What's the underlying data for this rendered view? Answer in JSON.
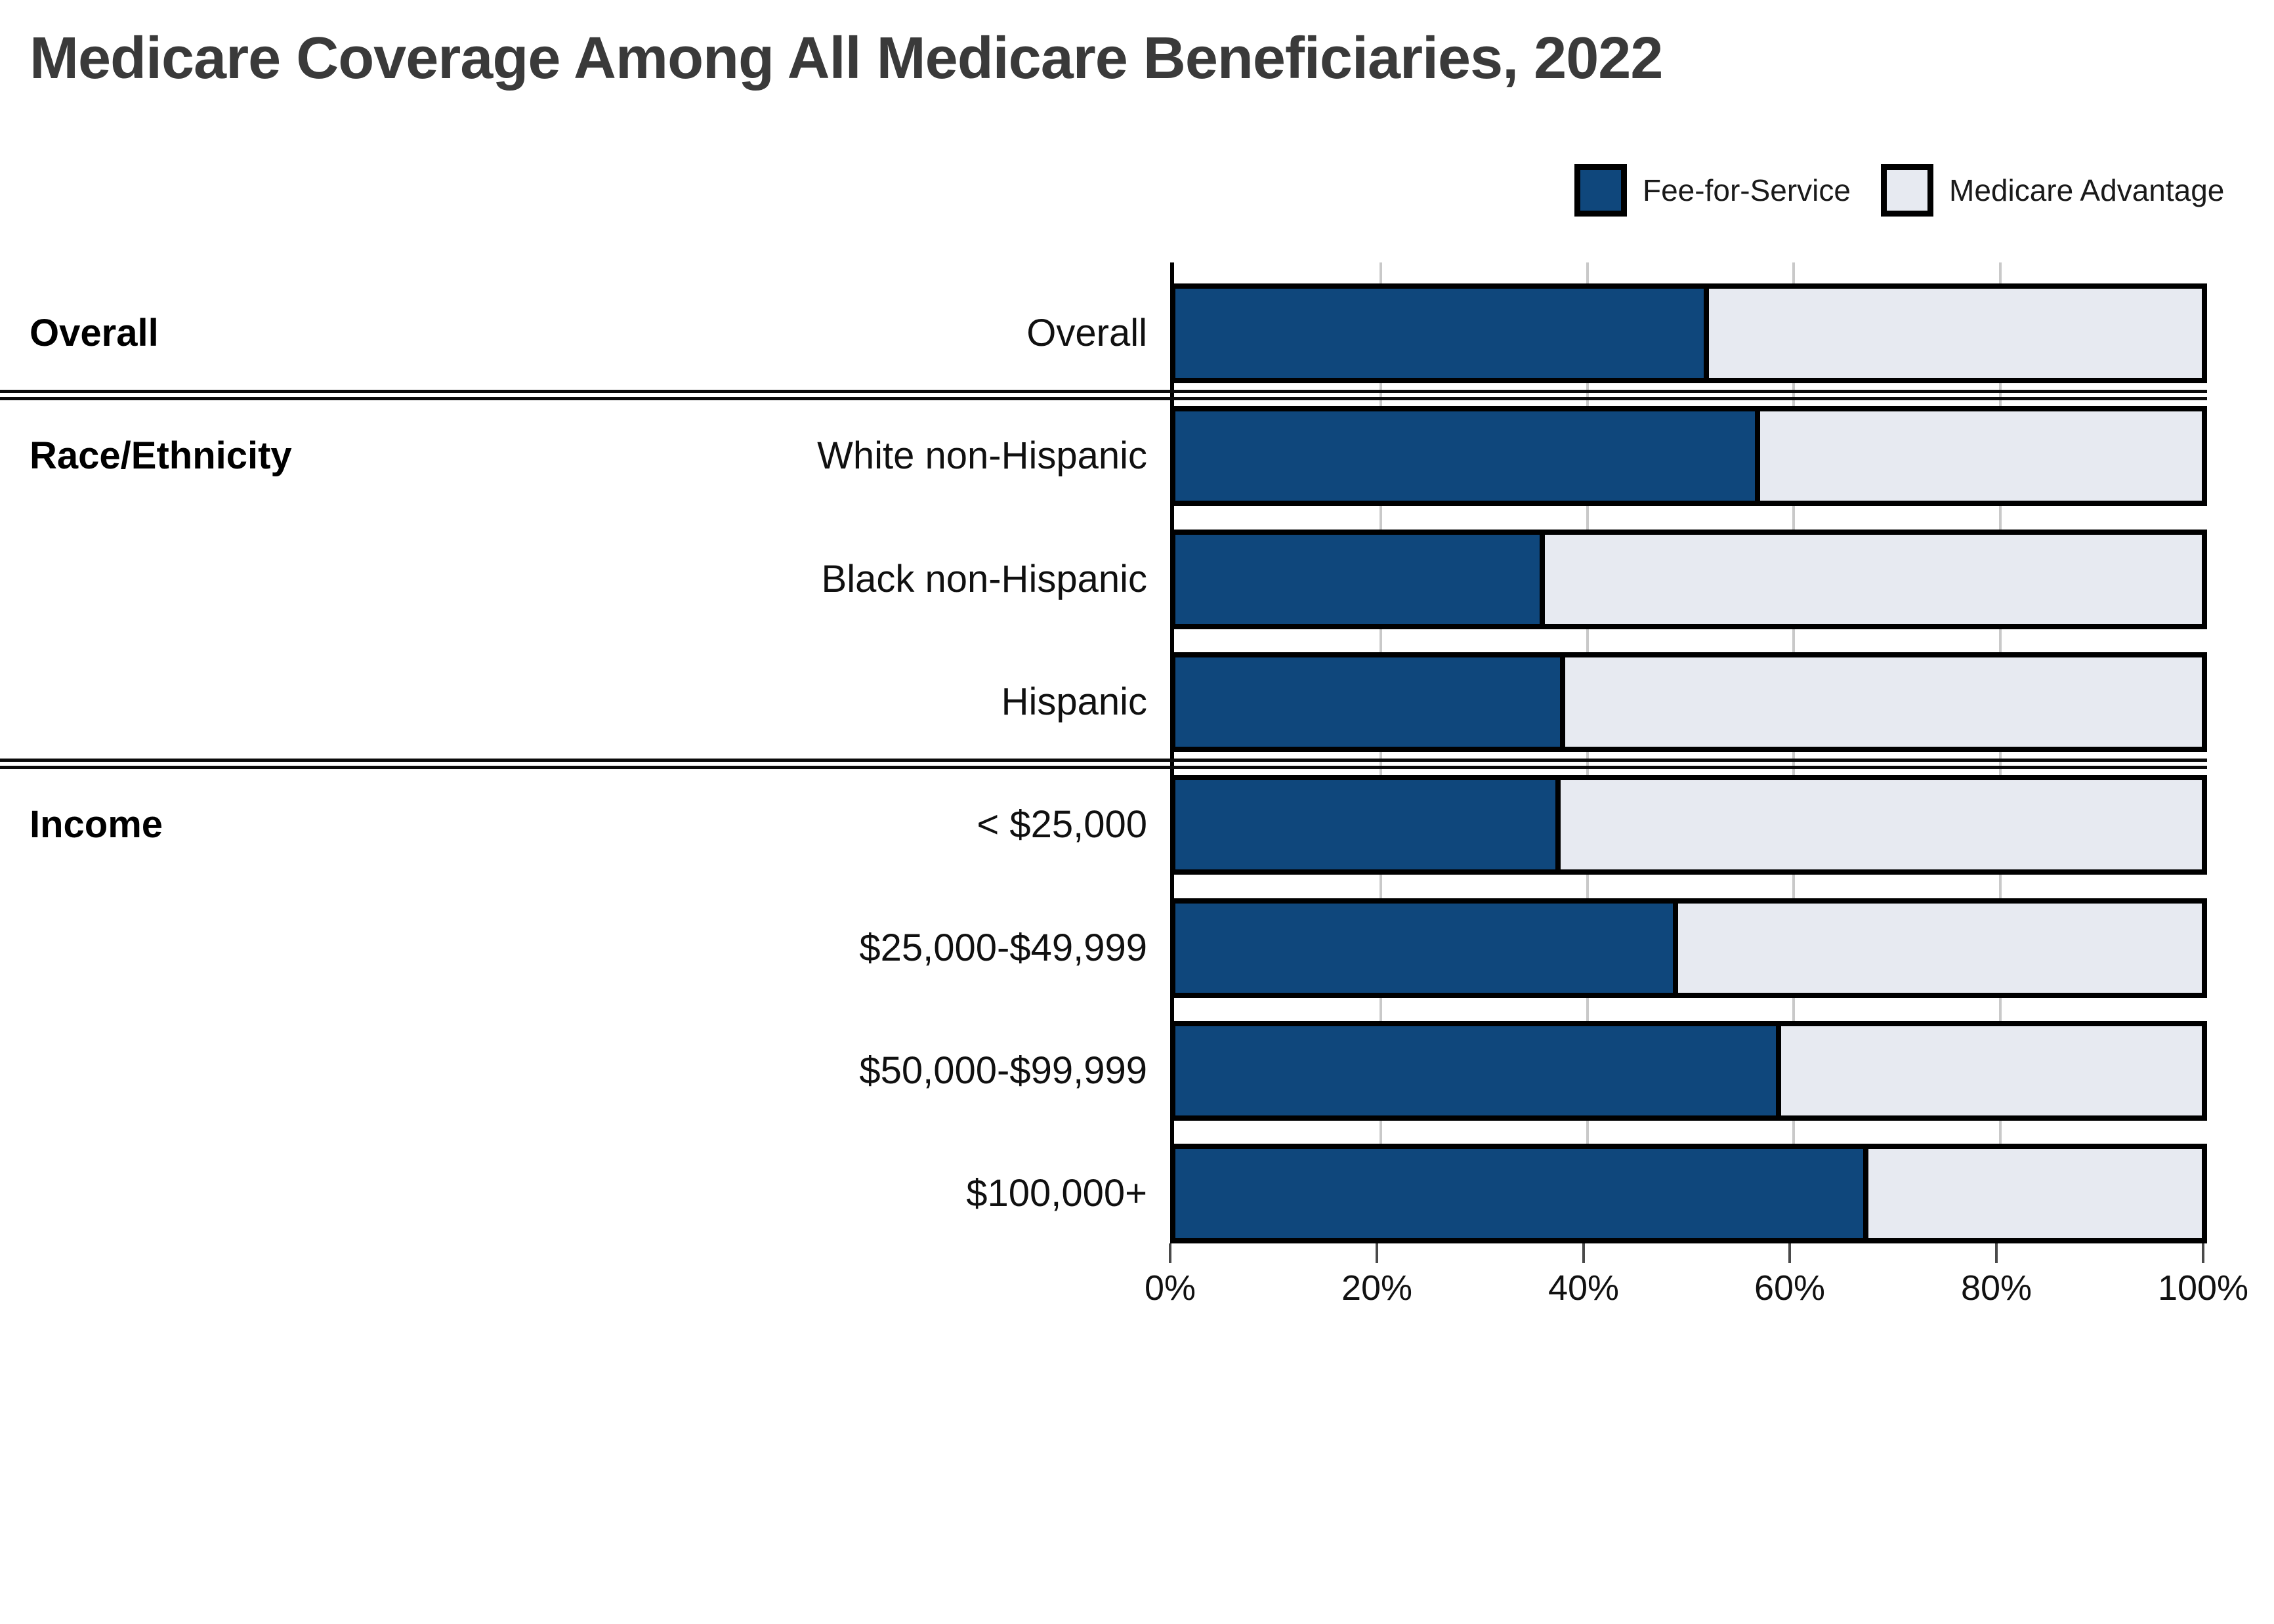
{
  "title": "Medicare Coverage Among All Medicare Beneficiaries, 2022",
  "legend": {
    "items": [
      {
        "label": "Fee-for-Service",
        "color": "#0f477c"
      },
      {
        "label": "Medicare Advantage",
        "color": "#e7eaf1"
      }
    ]
  },
  "colors": {
    "fee_for_service": "#0f477c",
    "medicare_advantage": "#e7eaf1",
    "bar_border": "#000000",
    "gridline": "#c9c9c9",
    "title_text": "#3a3a3a",
    "label_text": "#101010"
  },
  "chart_data": {
    "type": "bar",
    "stacked": true,
    "orientation": "horizontal",
    "title": "Medicare Coverage Among All Medicare Beneficiaries, 2022",
    "categories": [
      "Overall",
      "White non-Hispanic",
      "Black non-Hispanic",
      "Hispanic",
      "< $25,000",
      "$25,000-$49,999",
      "$50,000-$99,999",
      "$100,000+"
    ],
    "series": [
      {
        "name": "Fee-for-Service",
        "color": "#0f477c",
        "values": [
          52,
          57,
          36,
          38,
          37.5,
          49,
          59,
          67.5
        ]
      },
      {
        "name": "Medicare Advantage",
        "color": "#e7eaf1",
        "values": [
          48,
          43,
          64,
          62,
          62.5,
          51,
          41,
          32.5
        ]
      }
    ],
    "sections": [
      {
        "label": "Overall",
        "start_row": 0,
        "end_row": 0
      },
      {
        "label": "Race/Ethnicity",
        "start_row": 1,
        "end_row": 3
      },
      {
        "label": "Income",
        "start_row": 4,
        "end_row": 7
      }
    ],
    "x_ticks": [
      {
        "label": "0%",
        "value": 0
      },
      {
        "label": "20%",
        "value": 20
      },
      {
        "label": "40%",
        "value": 40
      },
      {
        "label": "60%",
        "value": 60
      },
      {
        "label": "80%",
        "value": 80
      },
      {
        "label": "100%",
        "value": 100
      }
    ],
    "xlim": [
      0,
      100
    ],
    "grid": true,
    "legend_position": "top-right"
  }
}
